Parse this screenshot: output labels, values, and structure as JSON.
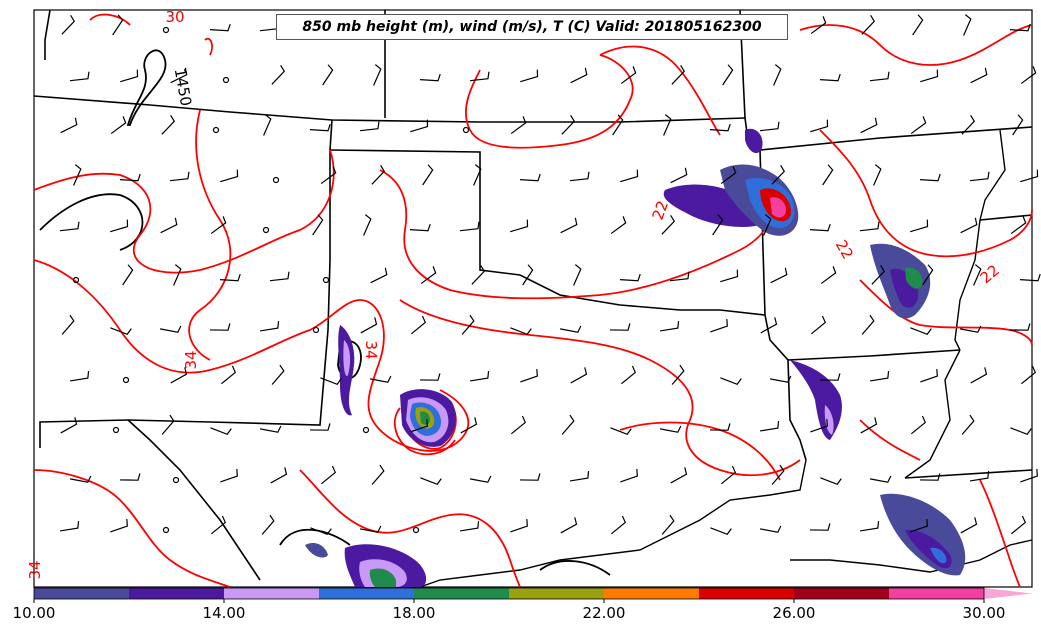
{
  "title": "850 mb height (m), wind (m/s), T (C) Valid: 201805162300",
  "contour_labels": {
    "height": [
      "1450"
    ],
    "temperature": [
      "30",
      "34",
      "34",
      "22",
      "22",
      "22",
      "34"
    ]
  },
  "colorbar": {
    "tick_labels": [
      "10.00",
      "14.00",
      "18.00",
      "22.00",
      "26.00",
      "30.00"
    ],
    "colors": [
      "#4a4a9a",
      "#4b1aa0",
      "#c99af5",
      "#2f6fdb",
      "#1f8b4c",
      "#9aa012",
      "#ff7a00",
      "#d90000",
      "#a0001c",
      "#f23fa0",
      "#f7a6d6"
    ]
  },
  "styles": {
    "temp_contour_color": "#ff0000",
    "height_contour_color": "#000000",
    "border_color": "#000000"
  },
  "chart_data": {
    "type": "heatmap",
    "title": "850 mb height (m), wind (m/s), T (C) Valid: 201805162300",
    "colorbar_range": [
      10,
      31
    ],
    "colorbar_ticks": [
      10,
      14,
      18,
      22,
      26,
      30
    ],
    "colorbar_step": 2
  }
}
